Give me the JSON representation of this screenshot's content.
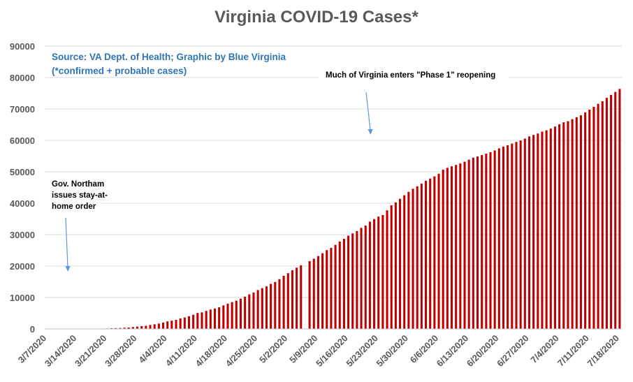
{
  "colors": {
    "bar": "#c00000",
    "grid": "#d9d9d9",
    "axis": "#bfbfbf",
    "title": "#595959",
    "source": "#2e75b6",
    "arrow": "#5b9bd5"
  },
  "chart_data": {
    "type": "bar",
    "title": "Virginia COVID-19 Cases*",
    "xlabel": "",
    "ylabel": "",
    "ylim": [
      0,
      90000
    ],
    "yticks": [
      0,
      10000,
      20000,
      30000,
      40000,
      50000,
      60000,
      70000,
      80000,
      90000
    ],
    "x_tick_labels": [
      "3/7/2020",
      "3/14/2020",
      "3/21/2020",
      "3/28/2020",
      "4/4/2020",
      "4/11/2020",
      "4/18/2020",
      "4/25/2020",
      "5/2/2020",
      "5/9/2020",
      "5/16/2020",
      "5/23/2020",
      "5/30/2020",
      "6/6/2020",
      "6/13/2020",
      "6/20/2020",
      "6/27/2020",
      "7/4/2020",
      "7/11/2020",
      "7/18/2020"
    ],
    "grid": "horizontal",
    "legend": "none",
    "source_lines": [
      "Source: VA Dept. of Health; Graphic by Blue Virginia",
      "(*confirmed + probable cases)"
    ],
    "annotations": [
      {
        "lines": [
          "Gov. Northam",
          "issues stay-at-",
          "home order"
        ],
        "date": "3/30/2020"
      },
      {
        "lines": [
          "Much of Virginia enters \"Phase 1\" reopening"
        ],
        "date": "5/15/2020"
      }
    ],
    "series": [
      {
        "start_date": "3/7/2020",
        "values": [
          2,
          3,
          3,
          5,
          8,
          12,
          17,
          25,
          30,
          45,
          67,
          77,
          94,
          114,
          152,
          219,
          254,
          290,
          391,
          460,
          604,
          739,
          890,
          1020,
          1250,
          1484,
          1706,
          2012,
          2407,
          2637,
          2878,
          3333,
          3645,
          4042,
          4509,
          5077,
          5274,
          5747,
          6171,
          6500,
          6889,
          7491,
          8053,
          8537,
          8990,
          9630,
          10266,
          10998,
          11594,
          12366,
          12970,
          13535,
          14339,
          14961,
          15846,
          16901,
          17731,
          18671,
          19492,
          20256,
          0,
          21570,
          22342,
          23196,
          24081,
          25070,
          25800,
          26746,
          27813,
          28672,
          29683,
          30388,
          31140,
          32145,
          32908,
          34137,
          34950,
          35749,
          36244,
          37727,
          39342,
          40249,
          41401,
          42533,
          43611,
          44607,
          45398,
          46239,
          47146,
          47856,
          48532,
          49397,
          50681,
          51251,
          51738,
          52177,
          52647,
          53211,
          53869,
          54506,
          54886,
          55331,
          55775,
          56238,
          56793,
          57443,
          57994,
          58465,
          58994,
          59514,
          59946,
          60570,
          61247,
          61736,
          62189,
          62787,
          63203,
          63735,
          64393,
          65109,
          65748,
          66102,
          66740,
          67375,
          67988,
          68931,
          69782,
          70670,
          71642,
          72443,
          73527,
          74431,
          75433,
          76373
        ]
      }
    ]
  }
}
